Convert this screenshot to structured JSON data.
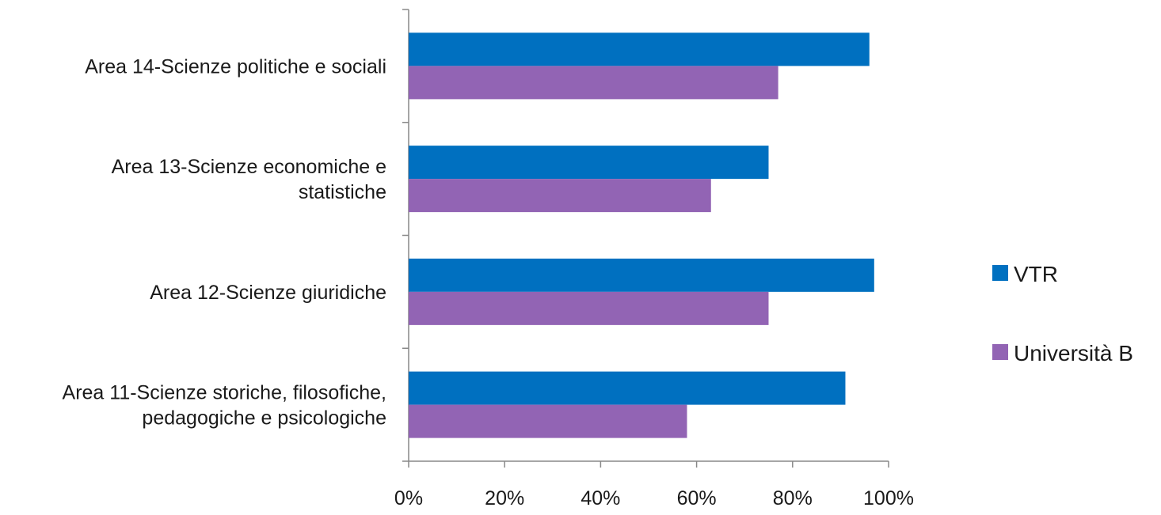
{
  "chart_data": {
    "type": "bar",
    "orientation": "horizontal",
    "categories": [
      [
        "Area 14-Scienze politiche e sociali"
      ],
      [
        "Area 13-Scienze economiche e",
        "statistiche"
      ],
      [
        "Area 12-Scienze giuridiche"
      ],
      [
        "Area 11-Scienze storiche, filosofiche,",
        "pedagogiche e psicologiche"
      ]
    ],
    "series": [
      {
        "name": "VTR",
        "color": "#0070C0",
        "values": [
          96,
          75,
          97,
          91
        ]
      },
      {
        "name": "Università B",
        "color": "#9264B4",
        "values": [
          77,
          63,
          75,
          58
        ]
      }
    ],
    "xlim": [
      0,
      100
    ],
    "xticks": [
      0,
      20,
      40,
      60,
      80,
      100
    ],
    "xtick_labels": [
      "0%",
      "20%",
      "40%",
      "60%",
      "80%",
      "100%"
    ],
    "grid": false,
    "legend_position": "right",
    "title": "",
    "xlabel": "",
    "ylabel": ""
  }
}
